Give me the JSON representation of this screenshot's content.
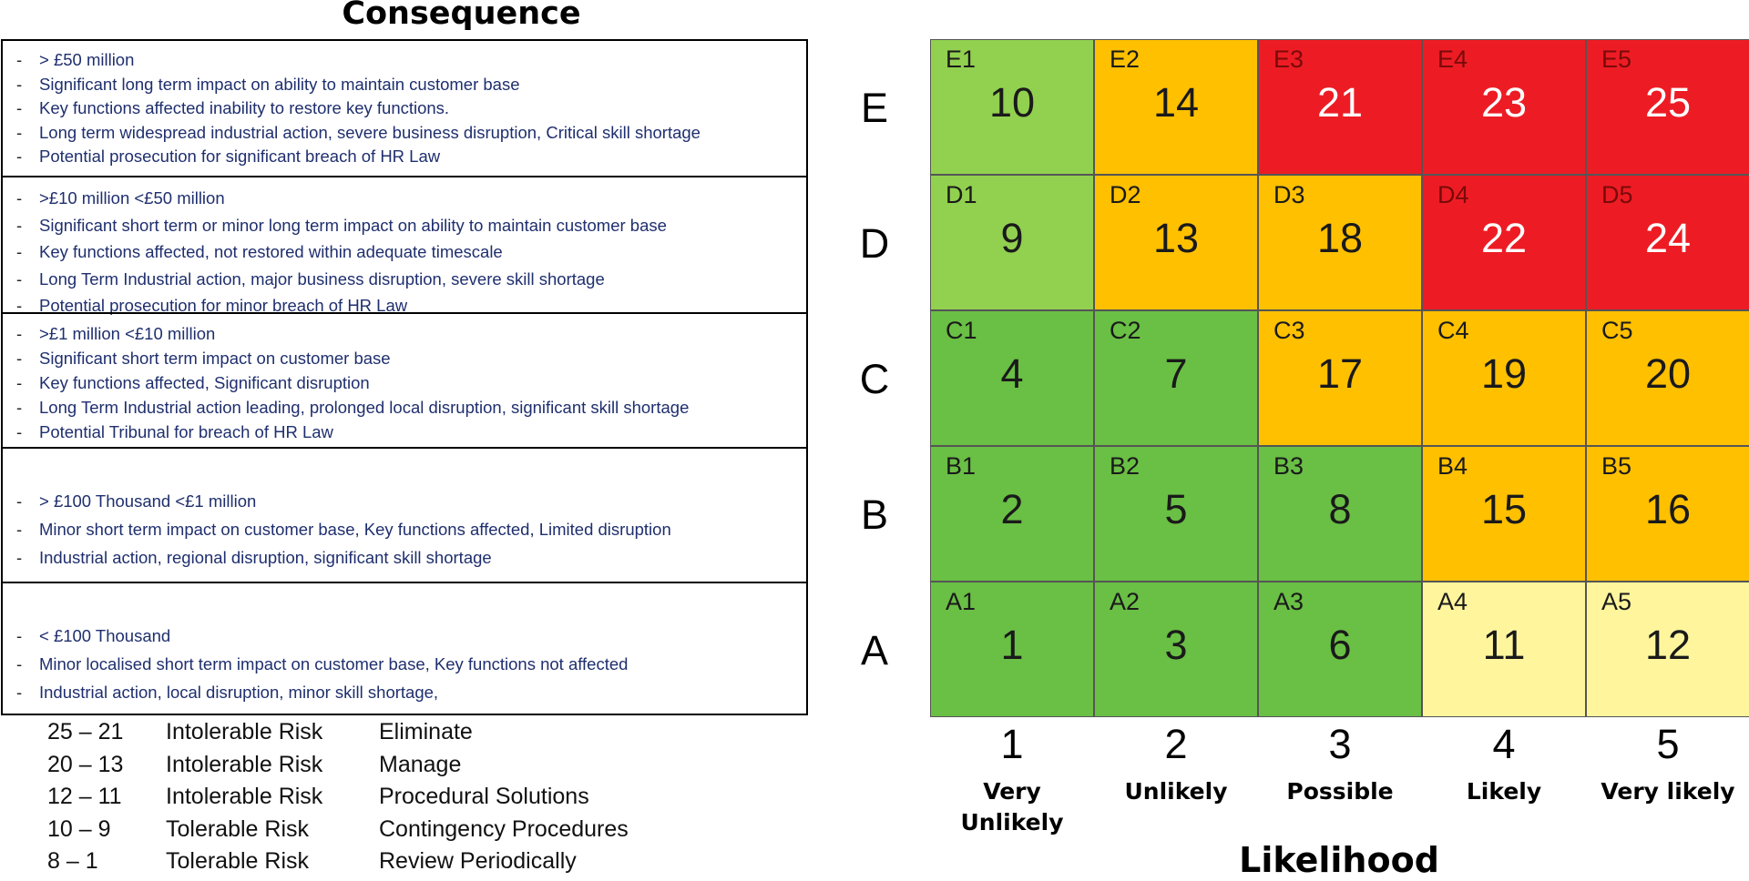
{
  "consequence": {
    "title": "Consequence",
    "rows": [
      {
        "level": "E",
        "items": [
          "> £50 million",
          "Significant long term impact on ability to maintain customer base",
          "Key functions affected inability to restore key functions.",
          "Long term widespread industrial action, severe business disruption, Critical skill shortage",
          "Potential prosecution for significant breach of HR Law"
        ]
      },
      {
        "level": "D",
        "items": [
          " >£10 million <£50 million",
          " Significant short term or minor long term impact on ability to maintain customer base",
          " Key functions affected, not restored within adequate timescale",
          " Long Term Industrial action, major business disruption, severe skill shortage",
          " Potential prosecution for minor breach of HR Law"
        ]
      },
      {
        "level": "C",
        "items": [
          ">£1 million <£10 million",
          "Significant short term impact on customer base",
          "Key functions affected, Significant disruption",
          "Long Term Industrial action leading, prolonged local disruption, significant skill shortage",
          "Potential Tribunal for breach of HR Law"
        ]
      },
      {
        "level": "B",
        "items": [
          "> £100 Thousand <£1 million",
          "Minor short term impact on customer base, Key functions affected, Limited disruption",
          "Industrial action, regional disruption, significant skill shortage"
        ]
      },
      {
        "level": "A",
        "items": [
          "< £100 Thousand",
          "Minor localised short term impact on customer base,  Key functions not affected",
          "Industrial action, local disruption, minor skill shortage,"
        ]
      }
    ]
  },
  "key": [
    {
      "range": "25 – 21",
      "level": "Intolerable Risk",
      "action": "Eliminate"
    },
    {
      "range": "20 – 13",
      "level": "Intolerable Risk",
      "action": "Manage"
    },
    {
      "range": "12 – 11",
      "level": "Intolerable Risk",
      "action": "Procedural Solutions"
    },
    {
      "range": "10 –   9",
      "level": "Tolerable Risk",
      "action": "Contingency Procedures"
    },
    {
      "range": "8 –   1",
      "level": "Tolerable Risk",
      "action": "Review Periodically"
    }
  ],
  "matrix": {
    "row_labels": [
      "E",
      "D",
      "C",
      "B",
      "A"
    ],
    "rows": [
      {
        "label": "E",
        "cells": [
          {
            "code": "E1",
            "score": "10",
            "color": "#92d050"
          },
          {
            "code": "E2",
            "score": "14",
            "color": "#ffc000"
          },
          {
            "code": "E3",
            "score": "21",
            "color": "#ed1c24"
          },
          {
            "code": "E4",
            "score": "23",
            "color": "#ed1c24"
          },
          {
            "code": "E5",
            "score": "25",
            "color": "#ed1c24"
          }
        ]
      },
      {
        "label": "D",
        "cells": [
          {
            "code": "D1",
            "score": "9",
            "color": "#92d050"
          },
          {
            "code": "D2",
            "score": "13",
            "color": "#ffc000"
          },
          {
            "code": "D3",
            "score": "18",
            "color": "#ffc000"
          },
          {
            "code": "D4",
            "score": "22",
            "color": "#ed1c24"
          },
          {
            "code": "D5",
            "score": "24",
            "color": "#ed1c24"
          }
        ]
      },
      {
        "label": "C",
        "cells": [
          {
            "code": "C1",
            "score": "4",
            "color": "#6abf45"
          },
          {
            "code": "C2",
            "score": "7",
            "color": "#6abf45"
          },
          {
            "code": "C3",
            "score": "17",
            "color": "#ffc000"
          },
          {
            "code": "C4",
            "score": "19",
            "color": "#ffc000"
          },
          {
            "code": "C5",
            "score": "20",
            "color": "#ffc000"
          }
        ]
      },
      {
        "label": "B",
        "cells": [
          {
            "code": "B1",
            "score": "2",
            "color": "#6abf45"
          },
          {
            "code": "B2",
            "score": "5",
            "color": "#6abf45"
          },
          {
            "code": "B3",
            "score": "8",
            "color": "#6abf45"
          },
          {
            "code": "B4",
            "score": "15",
            "color": "#ffc000"
          },
          {
            "code": "B5",
            "score": "16",
            "color": "#ffc000"
          }
        ]
      },
      {
        "label": "A",
        "cells": [
          {
            "code": "A1",
            "score": "1",
            "color": "#6abf45"
          },
          {
            "code": "A2",
            "score": "3",
            "color": "#6abf45"
          },
          {
            "code": "A3",
            "score": "6",
            "color": "#6abf45"
          },
          {
            "code": "A4",
            "score": "11",
            "color": "#fff59d"
          },
          {
            "code": "A5",
            "score": "12",
            "color": "#fff59d"
          }
        ]
      }
    ],
    "columns": [
      {
        "number": "1",
        "label": "Very\nUnlikely"
      },
      {
        "number": "2",
        "label": "Unlikely"
      },
      {
        "number": "3",
        "label": "Possible"
      },
      {
        "number": "4",
        "label": "Likely"
      },
      {
        "number": "5",
        "label": "Very likely"
      }
    ],
    "x_title": "Likelihood"
  }
}
